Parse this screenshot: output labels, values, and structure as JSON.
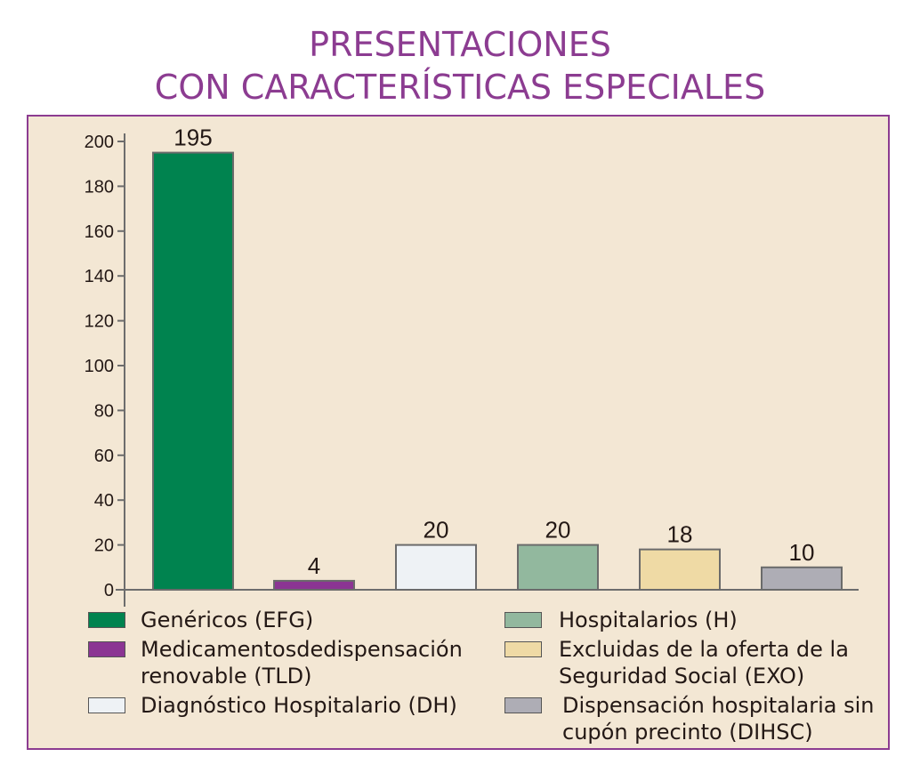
{
  "chart_data": {
    "type": "bar",
    "title": [
      "PRESENTACIONES",
      "CON CARACTERÍSTICAS ESPECIALES"
    ],
    "categories": [
      "Genéricos (EFG)",
      "Medicamentosdedispensación renovable (TLD)",
      "Diagnóstico Hospitalario (DH)",
      "Hospitalarios (H)",
      "Excluidas de la oferta de la Seguridad Social (EXO)",
      "Dispensación hospitalaria sin cupón precinto (DIHSC)"
    ],
    "values": [
      195,
      4,
      20,
      20,
      18,
      10
    ],
    "data_labels": [
      "195",
      "4",
      "20",
      "20",
      "18",
      "10"
    ],
    "colors": [
      "#00834f",
      "#8b3593",
      "#eef2f5",
      "#92b89e",
      "#efdaa5",
      "#aeadb5"
    ],
    "ylim": [
      0,
      200
    ],
    "yticks": [
      0,
      20,
      40,
      60,
      80,
      100,
      120,
      140,
      160,
      180,
      200
    ],
    "xlabel": "",
    "ylabel": "",
    "grid": false,
    "legend_placement": "bottom",
    "legend": [
      {
        "lines": [
          "Genéricos (EFG)"
        ]
      },
      {
        "lines": [
          "Medicamentosdedispensación",
          "renovable (TLD)"
        ]
      },
      {
        "lines": [
          "Diagnóstico Hospitalario (DH)"
        ]
      },
      {
        "lines": [
          "Hospitalarios (H)"
        ]
      },
      {
        "lines": [
          "Excluidas de la oferta de la",
          "Seguridad Social (EXO)"
        ]
      },
      {
        "lines": [
          "Dispensación hospitalaria sin",
          "cupón precinto (DIHSC)"
        ]
      }
    ]
  }
}
